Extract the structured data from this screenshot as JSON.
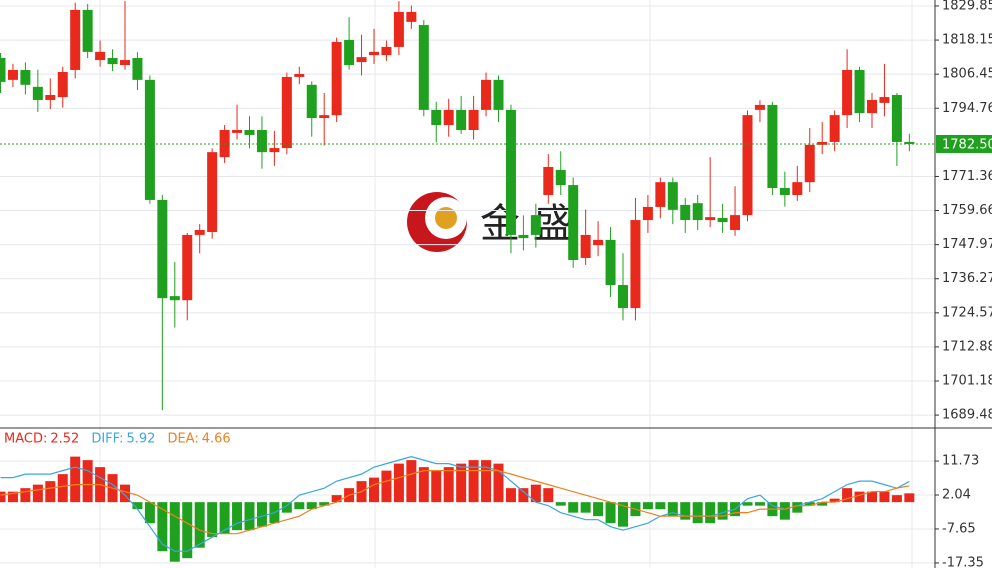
{
  "watermark": "金 盛",
  "chart_data": [
    {
      "type": "candlestick",
      "up_color": "#e8291c",
      "down_color": "#1fa01f",
      "ylim": [
        1685.4,
        1831.9
      ],
      "yticks": [
        1829.85,
        1818.15,
        1806.45,
        1794.76,
        1771.36,
        1759.66,
        1747.97,
        1736.27,
        1724.57,
        1712.88,
        1701.18,
        1689.48
      ],
      "grid": true,
      "last_price": {
        "value": 1782.5,
        "label": "1782.50"
      },
      "candles": [
        [
          1812.0,
          1813.7,
          1800.0,
          1803.8
        ],
        [
          1804.5,
          1810.0,
          1802.0,
          1807.9
        ],
        [
          1807.9,
          1810.5,
          1799.5,
          1802.8
        ],
        [
          1802.1,
          1808.0,
          1793.5,
          1797.6
        ],
        [
          1797.6,
          1805.0,
          1794.5,
          1799.3
        ],
        [
          1798.6,
          1809.0,
          1795.0,
          1807.2
        ],
        [
          1807.9,
          1831.0,
          1805.0,
          1828.5
        ],
        [
          1828.5,
          1830.5,
          1812.0,
          1814.1
        ],
        [
          1811.3,
          1818.0,
          1809.0,
          1814.1
        ],
        [
          1812.0,
          1815.0,
          1807.5,
          1809.9
        ],
        [
          1809.6,
          1831.5,
          1808.0,
          1811.3
        ],
        [
          1812.0,
          1814.0,
          1801.0,
          1804.5
        ],
        [
          1804.5,
          1806.0,
          1762.0,
          1763.3
        ],
        [
          1763.3,
          1765.0,
          1691.2,
          1729.6
        ],
        [
          1730.3,
          1742.0,
          1719.5,
          1728.9
        ],
        [
          1728.9,
          1752.0,
          1722.0,
          1751.3
        ],
        [
          1751.3,
          1755.0,
          1745.0,
          1753.0
        ],
        [
          1752.3,
          1781.0,
          1750.0,
          1779.7
        ],
        [
          1778.0,
          1789.0,
          1776.0,
          1787.3
        ],
        [
          1786.3,
          1796.0,
          1784.0,
          1787.3
        ],
        [
          1787.3,
          1792.0,
          1781.0,
          1785.6
        ],
        [
          1787.3,
          1792.0,
          1774.0,
          1779.7
        ],
        [
          1779.7,
          1787.0,
          1775.0,
          1781.1
        ],
        [
          1781.1,
          1807.0,
          1779.0,
          1805.5
        ],
        [
          1805.5,
          1809.0,
          1803.0,
          1806.5
        ],
        [
          1802.8,
          1804.0,
          1785.0,
          1791.4
        ],
        [
          1791.4,
          1800.0,
          1782.0,
          1792.4
        ],
        [
          1792.4,
          1819.0,
          1790.0,
          1817.5
        ],
        [
          1818.2,
          1826.0,
          1808.0,
          1809.6
        ],
        [
          1810.6,
          1820.0,
          1806.0,
          1812.3
        ],
        [
          1813.0,
          1822.0,
          1810.0,
          1814.1
        ],
        [
          1813.0,
          1818.0,
          1811.0,
          1815.8
        ],
        [
          1815.8,
          1831.5,
          1813.0,
          1827.8
        ],
        [
          1824.4,
          1830.0,
          1822.0,
          1827.8
        ],
        [
          1823.3,
          1825.0,
          1792.0,
          1794.2
        ],
        [
          1794.2,
          1797.0,
          1783.0,
          1789.0
        ],
        [
          1789.0,
          1798.0,
          1785.0,
          1794.2
        ],
        [
          1794.2,
          1799.0,
          1786.0,
          1787.3
        ],
        [
          1787.3,
          1799.0,
          1784.0,
          1794.2
        ],
        [
          1794.2,
          1807.0,
          1792.0,
          1804.5
        ],
        [
          1804.5,
          1806.0,
          1790.0,
          1794.2
        ],
        [
          1794.2,
          1796.0,
          1745.0,
          1751.3
        ],
        [
          1751.3,
          1758.0,
          1746.0,
          1750.2
        ],
        [
          1758.1,
          1762.0,
          1747.0,
          1751.3
        ],
        [
          1765.0,
          1779.0,
          1762.0,
          1774.6
        ],
        [
          1773.6,
          1780.0,
          1765.0,
          1768.4
        ],
        [
          1768.4,
          1771.0,
          1740.0,
          1742.7
        ],
        [
          1743.4,
          1760.0,
          1741.0,
          1751.3
        ],
        [
          1747.8,
          1756.0,
          1744.0,
          1749.6
        ],
        [
          1749.6,
          1754.0,
          1730.0,
          1734.1
        ],
        [
          1734.1,
          1745.0,
          1722.0,
          1726.2
        ],
        [
          1726.2,
          1764.0,
          1722.0,
          1756.4
        ],
        [
          1756.4,
          1765.0,
          1752.0,
          1760.9
        ],
        [
          1760.9,
          1771.0,
          1757.0,
          1769.4
        ],
        [
          1769.4,
          1771.0,
          1755.0,
          1759.9
        ],
        [
          1761.6,
          1764.0,
          1752.0,
          1756.4
        ],
        [
          1762.2,
          1765.0,
          1753.0,
          1756.4
        ],
        [
          1756.4,
          1778.0,
          1754.0,
          1757.4
        ],
        [
          1757.1,
          1762.0,
          1752.0,
          1755.7
        ],
        [
          1753.0,
          1768.0,
          1751.0,
          1758.1
        ],
        [
          1758.1,
          1794.0,
          1756.0,
          1792.4
        ],
        [
          1794.2,
          1797.5,
          1790.0,
          1795.9
        ],
        [
          1795.9,
          1797.0,
          1765.0,
          1767.4
        ],
        [
          1767.4,
          1773.0,
          1761.0,
          1765.0
        ],
        [
          1765.0,
          1775.0,
          1763.0,
          1769.4
        ],
        [
          1769.4,
          1788.0,
          1766.0,
          1782.2
        ],
        [
          1782.2,
          1790.0,
          1779.0,
          1783.2
        ],
        [
          1783.2,
          1794.0,
          1780.0,
          1792.4
        ],
        [
          1792.4,
          1815.0,
          1788.0,
          1807.9
        ],
        [
          1807.9,
          1809.0,
          1790.0,
          1793.1
        ],
        [
          1793.1,
          1800.0,
          1788.0,
          1797.6
        ],
        [
          1796.6,
          1810.0,
          1792.0,
          1798.6
        ],
        [
          1799.3,
          1800.0,
          1775.0,
          1783.2
        ],
        [
          1783.2,
          1786.0,
          1780.0,
          1782.5
        ]
      ]
    },
    {
      "type": "macd",
      "ylim": [
        -18.8,
        20.6
      ],
      "yticks": [
        11.73,
        2.04,
        -7.65,
        -17.35
      ],
      "series": [
        {
          "name": "MACD:",
          "color": "#e8291c",
          "down_color": "#1fa01f",
          "values": [
            3,
            3,
            4,
            5,
            6,
            8,
            13,
            12,
            10,
            8,
            5,
            -2,
            -6,
            -14,
            -17,
            -16,
            -13,
            -10,
            -9,
            -8,
            -8,
            -7,
            -6,
            -3,
            -2,
            -2,
            -1,
            2,
            4,
            6,
            7,
            9,
            11,
            12,
            10,
            9,
            10,
            11,
            12,
            12,
            11,
            4,
            4,
            5,
            4,
            -1,
            -3,
            -3,
            -4,
            -6,
            -7,
            -4,
            -2,
            -2,
            -4,
            -5,
            -6,
            -6,
            -5,
            -4,
            -1,
            -1,
            -4,
            -5,
            -3,
            -1,
            -1,
            1,
            4,
            3,
            3,
            3,
            2,
            2.52
          ]
        },
        {
          "name": "DIFF:",
          "color": "#3aa7e0",
          "values": [
            7,
            7,
            8,
            8,
            8,
            9,
            10,
            9,
            7,
            5,
            2,
            -2,
            -7,
            -12,
            -14,
            -14,
            -12,
            -10,
            -8,
            -6,
            -5,
            -4,
            -3,
            -1,
            2,
            3,
            4,
            6,
            7,
            8,
            10,
            11,
            12,
            13,
            12,
            11,
            11,
            10,
            10,
            10,
            9,
            6,
            3,
            0,
            -1,
            -3,
            -4,
            -5,
            -5,
            -7,
            -8,
            -7,
            -6,
            -4,
            -3,
            -4,
            -4,
            -4,
            -3,
            -2,
            1,
            2,
            -1,
            -2,
            -1,
            0,
            1,
            3,
            5,
            6,
            6,
            5,
            4,
            5.92
          ]
        },
        {
          "name": "DEA:",
          "color": "#f08020",
          "values": [
            2,
            2.5,
            3,
            3.5,
            4,
            4.5,
            5,
            5,
            5,
            4,
            3,
            2,
            0,
            -2,
            -4,
            -6,
            -8,
            -9,
            -9,
            -9,
            -8,
            -7,
            -6,
            -5,
            -4,
            -2,
            -1,
            0,
            2,
            3,
            5,
            6,
            7,
            8,
            9,
            9,
            9,
            9,
            9,
            9,
            9,
            8,
            7,
            6,
            5,
            4,
            3,
            2,
            1,
            0,
            -1,
            -2,
            -3,
            -4,
            -4,
            -4,
            -4,
            -4,
            -4,
            -3,
            -3,
            -2,
            -2,
            -2,
            -1,
            -1,
            0,
            0,
            1,
            2,
            3,
            3,
            4,
            4.66
          ]
        }
      ]
    }
  ]
}
